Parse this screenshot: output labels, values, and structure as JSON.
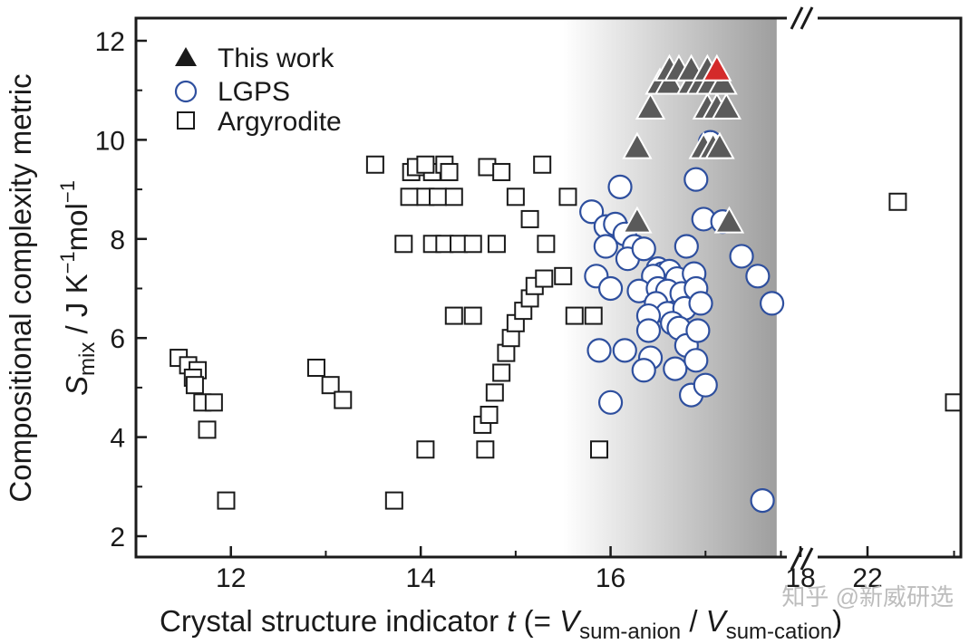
{
  "chart_data": {
    "type": "scatter",
    "xlabel": {
      "prefix": "Crystal structure indicator ",
      "var": "t",
      "mid1": " (= ",
      "v1": "V",
      "sub1": "sum-anion",
      "slash": " / ",
      "v2": "V",
      "sub2": "sum-cation",
      "suffix": ")"
    },
    "ylabel": {
      "line1": "Compositional complexity metric",
      "S": "S",
      "mix": "mix",
      "unit": " / J K",
      "exp1": "−1",
      "mol": "mol",
      "exp2": "−1"
    },
    "ylim": [
      2,
      12
    ],
    "xlim_main": [
      11,
      18
    ],
    "xlim_break": [
      20.7,
      23.3
    ],
    "x_ticks": [
      "12",
      "14",
      "16",
      "18",
      "22"
    ],
    "y_ticks": [
      "2",
      "4",
      "6",
      "8",
      "10",
      "12"
    ],
    "axis_break": true,
    "grid": false,
    "legend_position": "top-left",
    "shaded_region": {
      "x_start": 15.5,
      "x_end": 17.75
    },
    "colors": {
      "this_work": "#5a5a5a",
      "this_work_highlight": "#d42a2a",
      "lgps_edge": "#2e4f9e",
      "argyrodite_edge": "#1a1a1a",
      "shade_dark": "#9e9e9e"
    },
    "legend": [
      {
        "label": "This work",
        "marker": "triangle"
      },
      {
        "label": "LGPS",
        "marker": "circle"
      },
      {
        "label": "Argyrodite",
        "marker": "square"
      }
    ],
    "series": [
      {
        "name": "This work",
        "marker": "triangle",
        "points": [
          [
            16.28,
            8.35
          ],
          [
            17.25,
            8.35
          ],
          [
            16.28,
            9.85
          ],
          [
            16.98,
            9.85
          ],
          [
            17.08,
            9.85
          ],
          [
            17.15,
            9.85
          ],
          [
            16.42,
            10.65
          ],
          [
            17.02,
            10.65
          ],
          [
            17.12,
            10.65
          ],
          [
            17.22,
            10.65
          ],
          [
            16.52,
            11.15
          ],
          [
            16.62,
            11.15
          ],
          [
            16.85,
            11.15
          ],
          [
            16.95,
            11.15
          ],
          [
            17.05,
            11.15
          ],
          [
            17.18,
            11.15
          ],
          [
            16.62,
            11.42
          ],
          [
            16.72,
            11.42
          ],
          [
            16.85,
            11.42
          ],
          [
            17.02,
            11.42
          ]
        ],
        "highlight": [
          17.12,
          11.42
        ]
      },
      {
        "name": "LGPS",
        "marker": "circle",
        "points": [
          [
            15.8,
            8.55
          ],
          [
            15.95,
            8.25
          ],
          [
            16.05,
            8.3
          ],
          [
            16.1,
            9.05
          ],
          [
            16.15,
            8.1
          ],
          [
            16.25,
            7.85
          ],
          [
            15.95,
            7.85
          ],
          [
            16.18,
            7.6
          ],
          [
            16.35,
            7.8
          ],
          [
            16.5,
            7.4
          ],
          [
            16.55,
            7.3
          ],
          [
            16.62,
            7.35
          ],
          [
            16.7,
            7.2
          ],
          [
            16.45,
            7.25
          ],
          [
            15.85,
            7.25
          ],
          [
            16.0,
            7.0
          ],
          [
            16.3,
            6.95
          ],
          [
            16.5,
            7.0
          ],
          [
            16.6,
            6.95
          ],
          [
            16.75,
            6.9
          ],
          [
            16.48,
            6.7
          ],
          [
            16.6,
            6.5
          ],
          [
            16.78,
            6.6
          ],
          [
            16.4,
            6.45
          ],
          [
            16.65,
            6.3
          ],
          [
            16.4,
            6.15
          ],
          [
            16.72,
            6.2
          ],
          [
            16.8,
            5.85
          ],
          [
            15.88,
            5.75
          ],
          [
            16.15,
            5.75
          ],
          [
            16.42,
            5.6
          ],
          [
            16.35,
            5.35
          ],
          [
            16.68,
            5.38
          ],
          [
            16.85,
            4.85
          ],
          [
            17.0,
            5.05
          ],
          [
            16.0,
            4.7
          ],
          [
            16.88,
            7.3
          ],
          [
            16.9,
            7.0
          ],
          [
            16.95,
            6.7
          ],
          [
            16.92,
            6.15
          ],
          [
            16.9,
            5.55
          ],
          [
            17.38,
            7.65
          ],
          [
            17.55,
            7.25
          ],
          [
            17.7,
            6.7
          ],
          [
            16.98,
            8.4
          ],
          [
            16.8,
            7.85
          ],
          [
            16.9,
            9.2
          ],
          [
            17.05,
            9.95
          ],
          [
            17.18,
            8.35
          ],
          [
            17.6,
            2.72
          ]
        ]
      },
      {
        "name": "Argyrodite",
        "marker": "square",
        "points": [
          [
            11.45,
            5.6
          ],
          [
            11.55,
            5.45
          ],
          [
            11.65,
            5.35
          ],
          [
            11.6,
            5.2
          ],
          [
            11.62,
            5.05
          ],
          [
            11.7,
            4.7
          ],
          [
            11.82,
            4.7
          ],
          [
            11.75,
            4.15
          ],
          [
            11.95,
            2.72
          ],
          [
            12.9,
            5.4
          ],
          [
            13.05,
            5.05
          ],
          [
            13.18,
            4.75
          ],
          [
            13.52,
            9.5
          ],
          [
            13.82,
            7.9
          ],
          [
            13.88,
            8.85
          ],
          [
            13.9,
            9.35
          ],
          [
            13.95,
            9.45
          ],
          [
            14.05,
            8.85
          ],
          [
            14.12,
            9.35
          ],
          [
            14.18,
            8.85
          ],
          [
            14.25,
            9.5
          ],
          [
            14.3,
            9.35
          ],
          [
            14.35,
            8.85
          ],
          [
            14.05,
            9.5
          ],
          [
            14.12,
            7.9
          ],
          [
            14.25,
            7.9
          ],
          [
            14.4,
            7.9
          ],
          [
            14.55,
            7.9
          ],
          [
            14.35,
            6.45
          ],
          [
            14.55,
            6.45
          ],
          [
            14.7,
            9.45
          ],
          [
            14.85,
            9.35
          ],
          [
            14.8,
            7.9
          ],
          [
            15.0,
            8.85
          ],
          [
            15.15,
            8.4
          ],
          [
            15.28,
            9.5
          ],
          [
            15.32,
            7.9
          ],
          [
            15.55,
            8.85
          ],
          [
            13.72,
            2.72
          ],
          [
            14.05,
            3.75
          ],
          [
            14.68,
            3.75
          ],
          [
            14.65,
            4.25
          ],
          [
            14.72,
            4.45
          ],
          [
            14.78,
            4.9
          ],
          [
            14.85,
            5.3
          ],
          [
            14.9,
            5.7
          ],
          [
            14.95,
            6.0
          ],
          [
            15.0,
            6.3
          ],
          [
            15.08,
            6.55
          ],
          [
            15.15,
            6.8
          ],
          [
            15.2,
            7.05
          ],
          [
            15.3,
            7.2
          ],
          [
            15.5,
            7.25
          ],
          [
            15.62,
            6.45
          ],
          [
            15.82,
            6.45
          ],
          [
            15.88,
            3.75
          ],
          [
            22.35,
            8.75
          ],
          [
            23.0,
            4.7
          ]
        ]
      }
    ]
  },
  "watermark": "知乎 @新威研选"
}
